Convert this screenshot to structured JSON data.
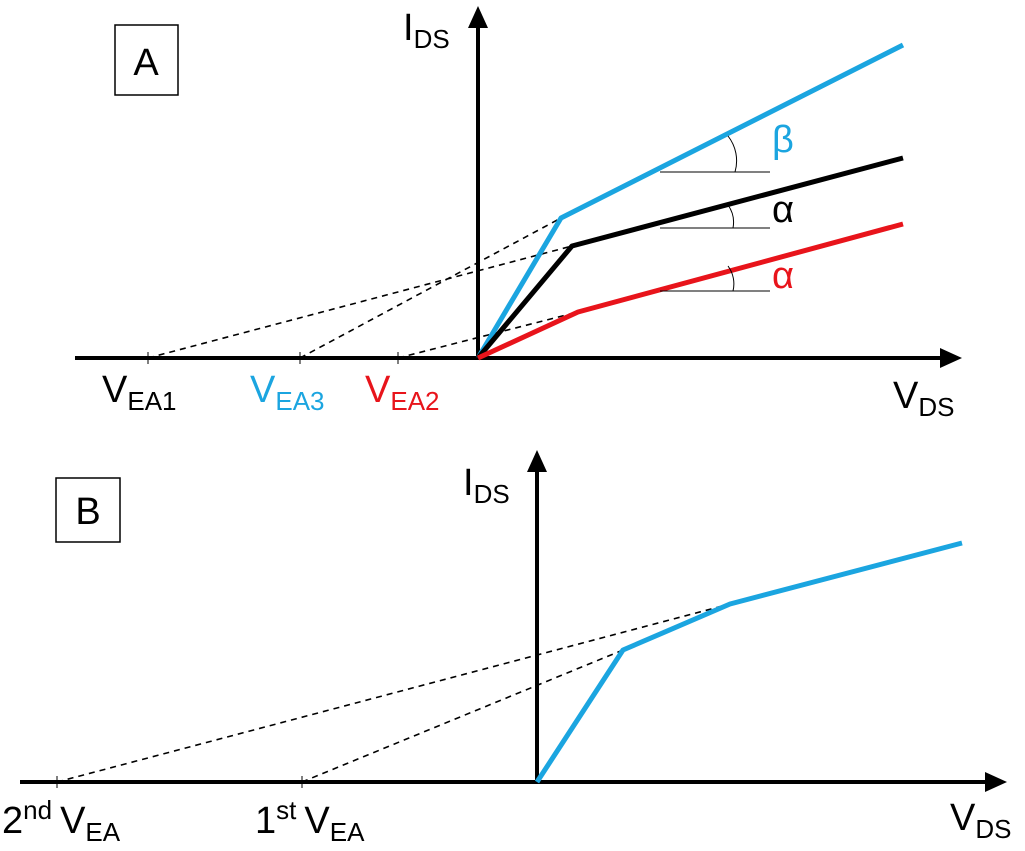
{
  "panels": [
    {
      "label": "A",
      "y_axis": {
        "main": "I",
        "sub": "DS"
      },
      "x_axis": {
        "main": "V",
        "sub": "DS"
      },
      "intercepts": [
        {
          "main": "V",
          "sub": "EA1"
        },
        {
          "main": "V",
          "sub": "EA3"
        },
        {
          "main": "V",
          "sub": "EA2"
        }
      ],
      "angles": [
        "β",
        "α",
        "α"
      ]
    },
    {
      "label": "B",
      "y_axis": {
        "main": "I",
        "sub": "DS"
      },
      "x_axis": {
        "main": "V",
        "sub": "DS"
      },
      "intercepts": [
        {
          "num": "2",
          "sup": "nd",
          "main": "V",
          "sub": "EA"
        },
        {
          "num": "1",
          "sup": "st",
          "main": "V",
          "sub": "EA"
        }
      ]
    }
  ]
}
